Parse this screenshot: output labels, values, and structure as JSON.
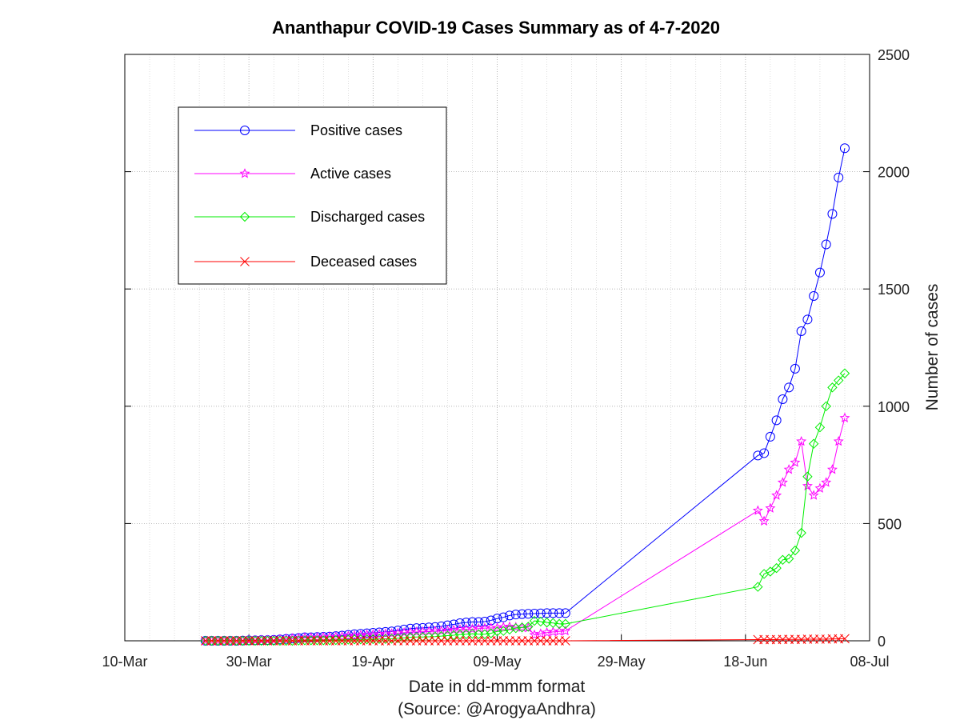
{
  "chart_data": {
    "type": "line",
    "title": "Ananthapur COVID-19 Cases Summary as of 4-7-2020",
    "xlabel": "Date in dd-mmm format",
    "source": "(Source: @ArogyaAndhra)",
    "ylabel": "Number of cases",
    "xlim": [
      "2020-03-10",
      "2020-07-08"
    ],
    "ylim": [
      0,
      2500
    ],
    "x_ticks": [
      {
        "date": "2020-03-10",
        "label": "10-Mar"
      },
      {
        "date": "2020-03-30",
        "label": "30-Mar"
      },
      {
        "date": "2020-04-19",
        "label": "19-Apr"
      },
      {
        "date": "2020-05-09",
        "label": "09-May"
      },
      {
        "date": "2020-05-29",
        "label": "29-May"
      },
      {
        "date": "2020-06-18",
        "label": "18-Jun"
      },
      {
        "date": "2020-07-08",
        "label": "08-Jul"
      }
    ],
    "y_ticks": [
      0,
      500,
      1000,
      1500,
      2000,
      2500
    ],
    "grid": true,
    "y_axis_side": "right",
    "legend_position": "top-left",
    "x": [
      "2020-03-23",
      "2020-03-24",
      "2020-03-25",
      "2020-03-26",
      "2020-03-27",
      "2020-03-28",
      "2020-03-29",
      "2020-03-30",
      "2020-03-31",
      "2020-04-01",
      "2020-04-02",
      "2020-04-03",
      "2020-04-04",
      "2020-04-05",
      "2020-04-06",
      "2020-04-07",
      "2020-04-08",
      "2020-04-09",
      "2020-04-10",
      "2020-04-11",
      "2020-04-12",
      "2020-04-13",
      "2020-04-14",
      "2020-04-15",
      "2020-04-16",
      "2020-04-17",
      "2020-04-18",
      "2020-04-19",
      "2020-04-20",
      "2020-04-21",
      "2020-04-22",
      "2020-04-23",
      "2020-04-24",
      "2020-04-25",
      "2020-04-26",
      "2020-04-27",
      "2020-04-28",
      "2020-04-29",
      "2020-04-30",
      "2020-05-01",
      "2020-05-02",
      "2020-05-03",
      "2020-05-04",
      "2020-05-05",
      "2020-05-06",
      "2020-05-07",
      "2020-05-08",
      "2020-05-09",
      "2020-05-10",
      "2020-05-11",
      "2020-05-12",
      "2020-05-13",
      "2020-05-14",
      "2020-05-15",
      "2020-05-16",
      "2020-05-17",
      "2020-05-18",
      "2020-05-19",
      "2020-05-20",
      "2020-06-20",
      "2020-06-21",
      "2020-06-22",
      "2020-06-23",
      "2020-06-24",
      "2020-06-25",
      "2020-06-26",
      "2020-06-27",
      "2020-06-28",
      "2020-06-29",
      "2020-06-30",
      "2020-07-01",
      "2020-07-02",
      "2020-07-03",
      "2020-07-04"
    ],
    "series": [
      {
        "name": "Positive cases",
        "color": "#0000ff",
        "marker": "circle",
        "values": [
          0,
          0,
          0,
          0,
          0,
          0,
          1,
          2,
          2,
          3,
          3,
          4,
          6,
          8,
          10,
          12,
          15,
          15,
          16,
          17,
          18,
          20,
          22,
          25,
          28,
          30,
          32,
          34,
          36,
          38,
          40,
          44,
          48,
          52,
          54,
          55,
          57,
          59,
          62,
          66,
          70,
          75,
          78,
          80,
          80,
          82,
          87,
          95,
          100,
          108,
          112,
          114,
          115,
          116,
          117,
          118,
          118,
          118,
          118,
          790,
          800,
          870,
          940,
          1030,
          1080,
          1160,
          1320,
          1370,
          1470,
          1570,
          1690,
          1820,
          1975,
          2100
        ]
      },
      {
        "name": "Active cases",
        "color": "#ff00ff",
        "marker": "star",
        "values": [
          0,
          0,
          0,
          0,
          0,
          0,
          1,
          2,
          2,
          3,
          3,
          4,
          6,
          8,
          10,
          11,
          13,
          13,
          14,
          15,
          16,
          17,
          18,
          20,
          22,
          24,
          26,
          27,
          28,
          30,
          31,
          33,
          35,
          37,
          38,
          39,
          40,
          41,
          42,
          44,
          46,
          48,
          50,
          50,
          52,
          54,
          55,
          55,
          58,
          60,
          58,
          57,
          55,
          25,
          30,
          35,
          38,
          40,
          42,
          555,
          510,
          565,
          620,
          675,
          730,
          760,
          850,
          660,
          620,
          650,
          675,
          730,
          850,
          950
        ]
      },
      {
        "name": "Discharged cases",
        "color": "#00ee00",
        "marker": "diamond",
        "values": [
          0,
          0,
          0,
          0,
          0,
          0,
          0,
          0,
          0,
          0,
          0,
          0,
          0,
          0,
          0,
          1,
          2,
          2,
          2,
          2,
          2,
          3,
          4,
          5,
          6,
          6,
          6,
          7,
          8,
          8,
          9,
          11,
          13,
          15,
          16,
          16,
          17,
          18,
          20,
          22,
          24,
          27,
          28,
          30,
          28,
          28,
          32,
          40,
          42,
          48,
          54,
          57,
          60,
          85,
          82,
          78,
          76,
          72,
          72,
          230,
          285,
          295,
          310,
          345,
          350,
          385,
          460,
          700,
          840,
          910,
          1000,
          1080,
          1110,
          1140
        ]
      },
      {
        "name": "Deceased cases",
        "color": "#ff0000",
        "marker": "x",
        "values": [
          0,
          0,
          0,
          0,
          0,
          0,
          0,
          0,
          0,
          0,
          0,
          0,
          0,
          0,
          0,
          0,
          0,
          0,
          0,
          0,
          0,
          0,
          0,
          0,
          0,
          0,
          0,
          0,
          0,
          0,
          0,
          0,
          0,
          0,
          0,
          0,
          0,
          0,
          0,
          0,
          0,
          0,
          0,
          0,
          0,
          0,
          0,
          0,
          0,
          0,
          0,
          0,
          0,
          0,
          0,
          0,
          0,
          0,
          0,
          5,
          5,
          5,
          5,
          6,
          6,
          6,
          6,
          7,
          7,
          7,
          7,
          8,
          8,
          9
        ]
      }
    ]
  }
}
